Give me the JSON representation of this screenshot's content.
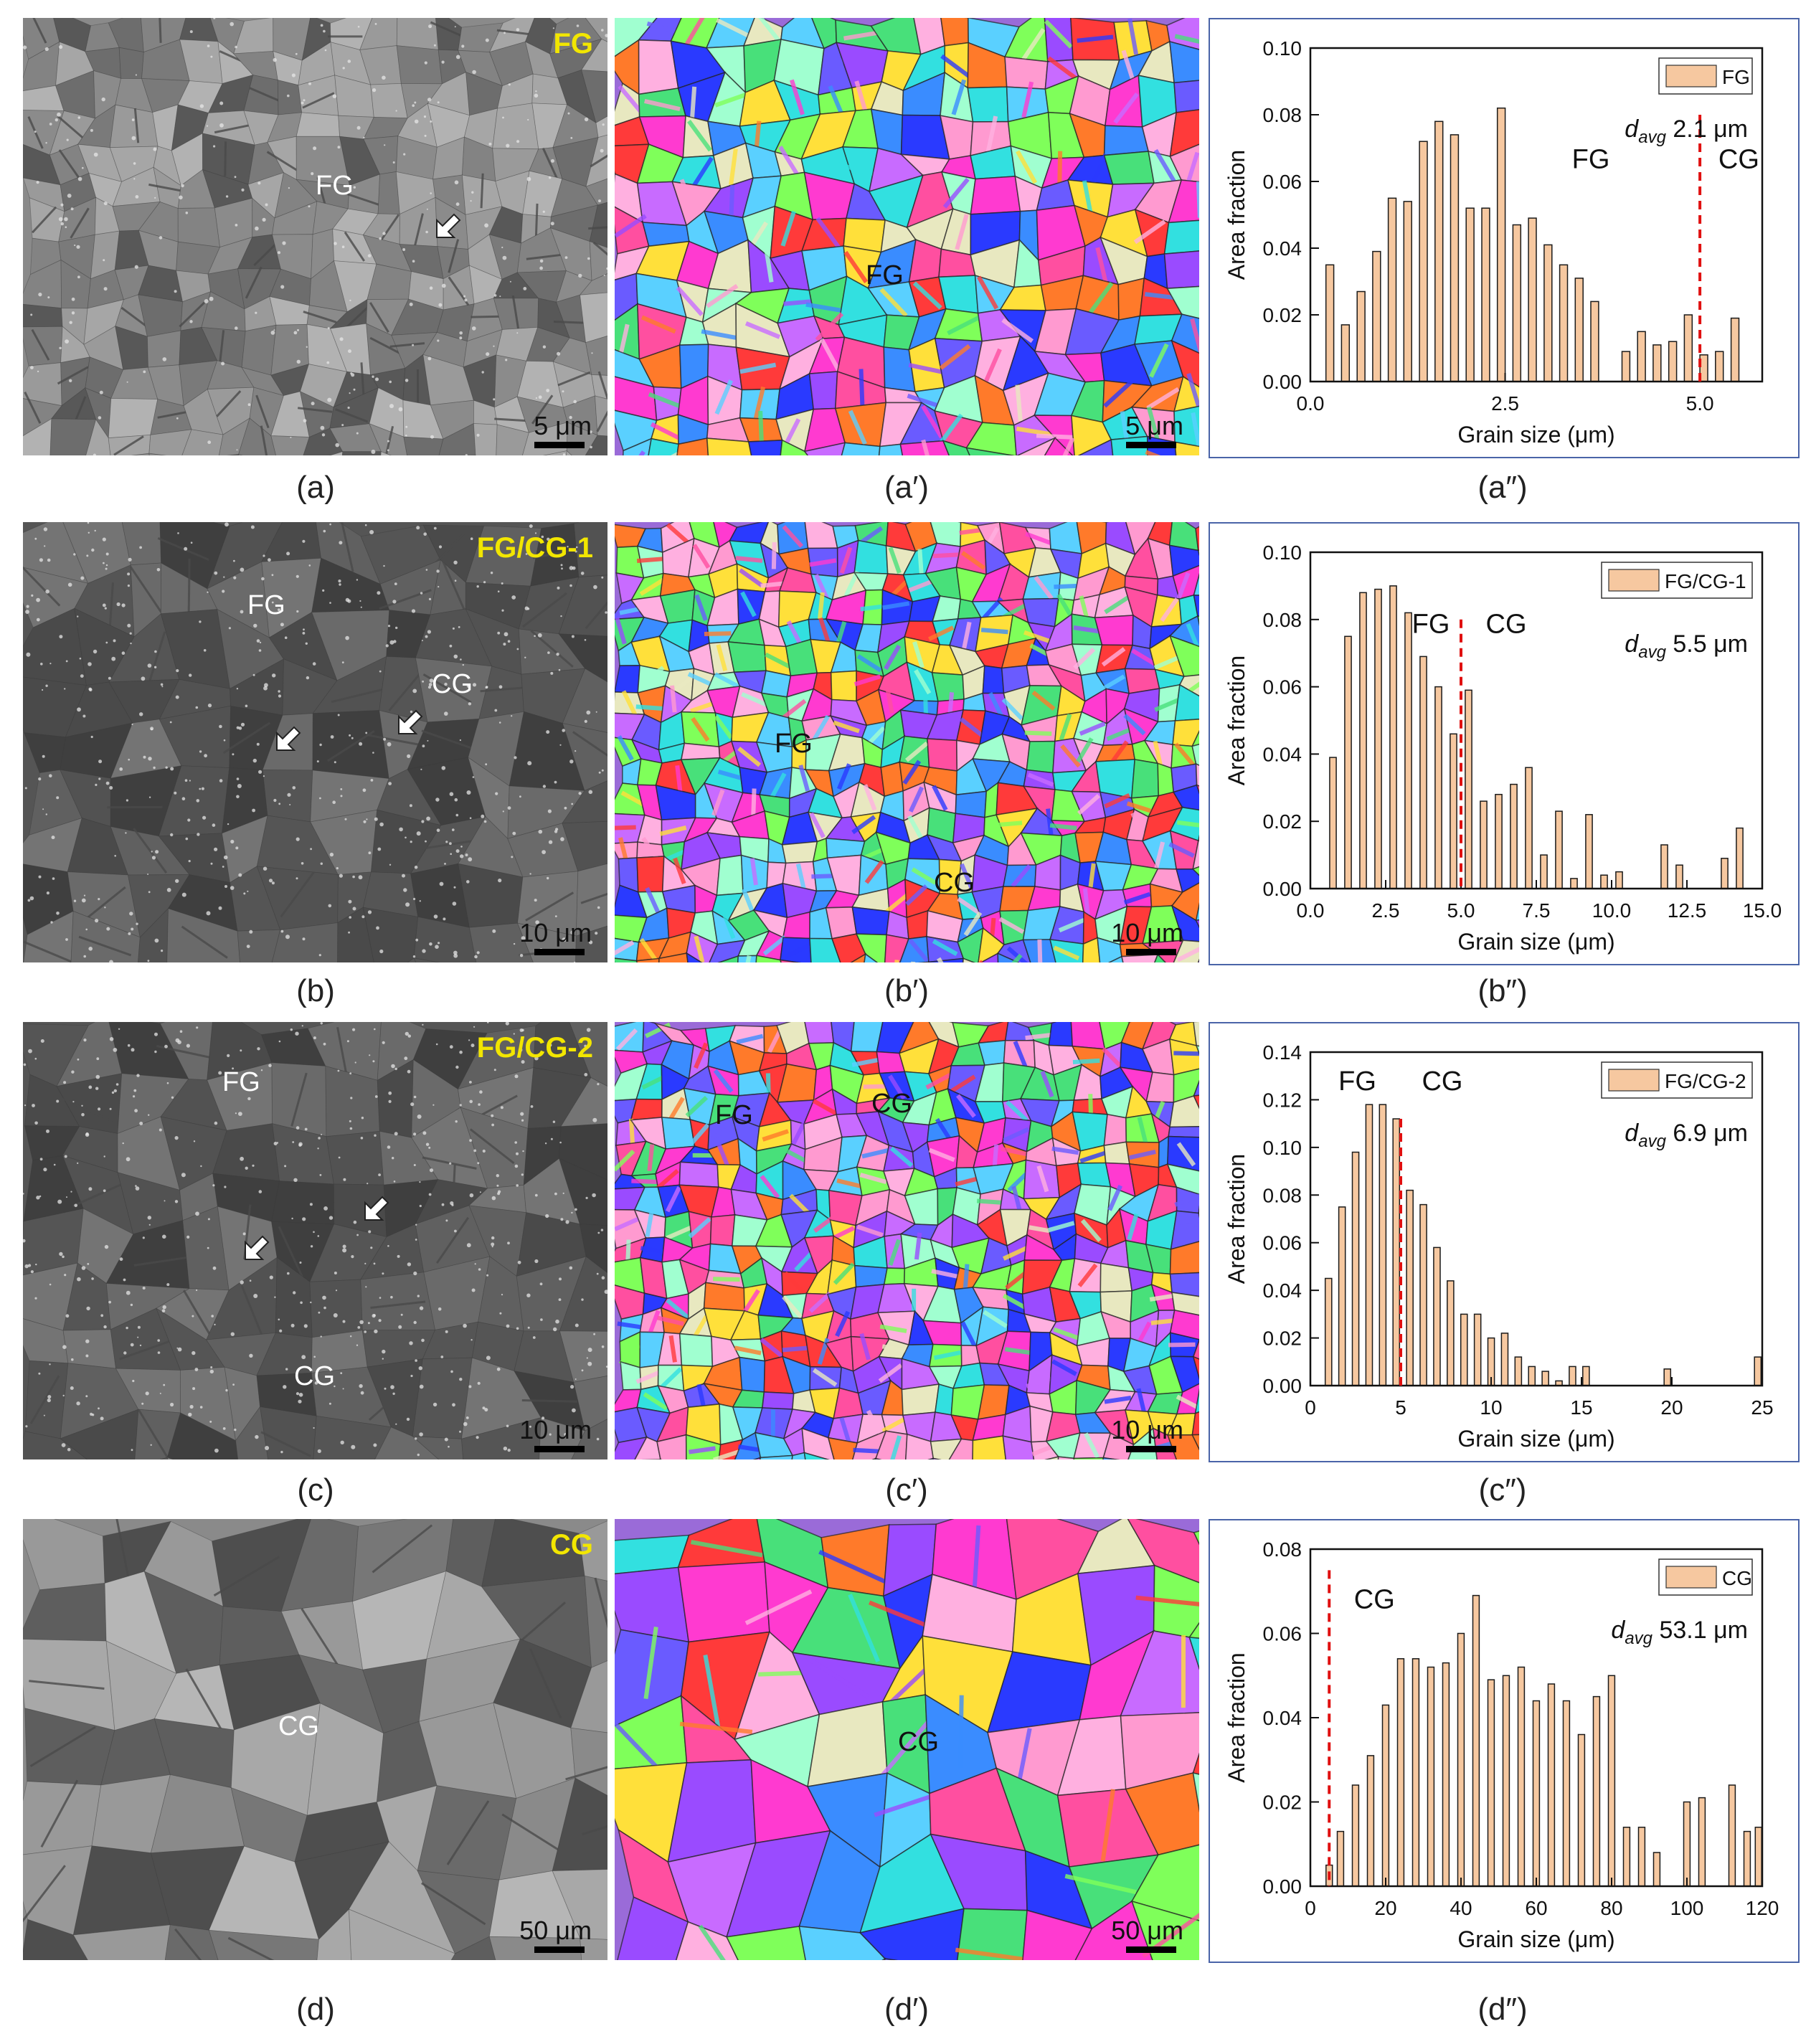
{
  "rows": [
    {
      "sem_caption": "(a)",
      "ebsd_caption": "(a′)",
      "chart_caption": "(a″)",
      "sem_tag": "FG",
      "sem_labels": [
        {
          "text": "FG"
        }
      ],
      "sem_scale": "5 μm",
      "ebsd_labels": [
        {
          "text": "FG"
        }
      ],
      "ebsd_scale": "5 μm",
      "sem_tone": "fine",
      "ebsd_tone": "fine"
    },
    {
      "sem_caption": "(b)",
      "ebsd_caption": "(b′)",
      "chart_caption": "(b″)",
      "sem_tag": "FG/CG-1",
      "sem_labels": [
        {
          "text": "FG"
        },
        {
          "text": "CG"
        }
      ],
      "sem_scale": "10 μm",
      "ebsd_labels": [
        {
          "text": "FG"
        },
        {
          "text": "CG"
        }
      ],
      "ebsd_scale": "10 μm",
      "sem_tone": "dark",
      "ebsd_tone": "mixed"
    },
    {
      "sem_caption": "(c)",
      "ebsd_caption": "(c′)",
      "chart_caption": "(c″)",
      "sem_tag": "FG/CG-2",
      "sem_labels": [
        {
          "text": "FG"
        },
        {
          "text": "CG"
        }
      ],
      "sem_scale": "10 μm",
      "ebsd_labels": [
        {
          "text": "FG"
        },
        {
          "text": "CG"
        }
      ],
      "ebsd_scale": "10 μm",
      "sem_tone": "dark",
      "ebsd_tone": "mixed"
    },
    {
      "sem_caption": "(d)",
      "ebsd_caption": "(d′)",
      "chart_caption": "(d″)",
      "sem_tag": "CG",
      "sem_labels": [
        {
          "text": "CG"
        }
      ],
      "sem_scale": "50 μm",
      "ebsd_labels": [
        {
          "text": "CG"
        }
      ],
      "ebsd_scale": "50 μm",
      "sem_tone": "coarse",
      "ebsd_tone": "coarse"
    }
  ],
  "chart_data": [
    {
      "type": "bar",
      "legend": "FG",
      "legend_position": "top-right",
      "davg_label": "d",
      "davg_sub": "avg",
      "davg_value": "2.1 μm",
      "xlabel": "Grain size (μm)",
      "ylabel": "Area fraction",
      "xlim": [
        0,
        5.8
      ],
      "ylim": [
        0,
        0.1
      ],
      "xticks": [
        0.0,
        2.5,
        5.0
      ],
      "xtick_labels": [
        "0.0",
        "2.5",
        "5.0"
      ],
      "yticks": [
        0.0,
        0.02,
        0.04,
        0.06,
        0.08,
        0.1
      ],
      "ytick_labels": [
        "0.00",
        "0.02",
        "0.04",
        "0.06",
        "0.08",
        "0.10"
      ],
      "divider_x": 5.0,
      "region_labels": [
        {
          "text": "FG",
          "x": 3.6,
          "y": 0.064
        },
        {
          "text": "CG",
          "x": 5.5,
          "y": 0.064
        }
      ],
      "bar_width": 0.1,
      "x": [
        0.25,
        0.45,
        0.65,
        0.85,
        1.05,
        1.25,
        1.45,
        1.65,
        1.85,
        2.05,
        2.25,
        2.45,
        2.65,
        2.85,
        3.05,
        3.25,
        3.45,
        3.65,
        3.85,
        4.05,
        4.25,
        4.45,
        4.65,
        4.85,
        5.05,
        5.25,
        5.45
      ],
      "values": [
        0.035,
        0.017,
        0.027,
        0.039,
        0.055,
        0.054,
        0.072,
        0.078,
        0.074,
        0.052,
        0.052,
        0.082,
        0.047,
        0.049,
        0.041,
        0.035,
        0.031,
        0.024,
        0.0,
        0.009,
        0.015,
        0.011,
        0.012,
        0.02,
        0.008,
        0.009,
        0.019
      ]
    },
    {
      "type": "bar",
      "legend": "FG/CG-1",
      "legend_position": "top-right",
      "davg_label": "d",
      "davg_sub": "avg",
      "davg_value": "5.5 μm",
      "xlabel": "Grain size (μm)",
      "ylabel": "Area fraction",
      "xlim": [
        0,
        15
      ],
      "ylim": [
        0,
        0.1
      ],
      "xticks": [
        0.0,
        2.5,
        5.0,
        7.5,
        10.0,
        12.5,
        15.0
      ],
      "xtick_labels": [
        "0.0",
        "2.5",
        "5.0",
        "7.5",
        "10.0",
        "12.5",
        "15.0"
      ],
      "yticks": [
        0.0,
        0.02,
        0.04,
        0.06,
        0.08,
        0.1
      ],
      "ytick_labels": [
        "0.00",
        "0.02",
        "0.04",
        "0.06",
        "0.08",
        "0.10"
      ],
      "divider_x": 5.0,
      "region_labels": [
        {
          "text": "FG",
          "x": 4.0,
          "y": 0.076
        },
        {
          "text": "CG",
          "x": 6.5,
          "y": 0.076
        }
      ],
      "bar_width": 0.22,
      "x": [
        0.75,
        1.25,
        1.75,
        2.25,
        2.75,
        3.25,
        3.75,
        4.25,
        4.75,
        5.25,
        5.75,
        6.25,
        6.75,
        7.25,
        7.75,
        8.25,
        8.75,
        9.25,
        9.75,
        10.25,
        11.75,
        12.25,
        13.75,
        14.25
      ],
      "values": [
        0.039,
        0.075,
        0.088,
        0.089,
        0.09,
        0.082,
        0.069,
        0.06,
        0.046,
        0.059,
        0.026,
        0.028,
        0.031,
        0.036,
        0.01,
        0.023,
        0.003,
        0.022,
        0.004,
        0.005,
        0.013,
        0.007,
        0.009,
        0.018
      ]
    },
    {
      "type": "bar",
      "legend": "FG/CG-2",
      "legend_position": "top-right",
      "davg_label": "d",
      "davg_sub": "avg",
      "davg_value": "6.9 μm",
      "xlabel": "Grain size (μm)",
      "ylabel": "Area fraction",
      "xlim": [
        0,
        25
      ],
      "ylim": [
        0,
        0.14
      ],
      "xticks": [
        0,
        5,
        10,
        15,
        20,
        25
      ],
      "xtick_labels": [
        "0",
        "5",
        "10",
        "15",
        "20",
        "25"
      ],
      "yticks": [
        0.0,
        0.02,
        0.04,
        0.06,
        0.08,
        0.1,
        0.12,
        0.14
      ],
      "ytick_labels": [
        "0.00",
        "0.02",
        "0.04",
        "0.06",
        "0.08",
        "0.10",
        "0.12",
        "0.14"
      ],
      "divider_x": 5.0,
      "region_labels": [
        {
          "text": "FG",
          "x": 2.6,
          "y": 0.124
        },
        {
          "text": "CG",
          "x": 7.3,
          "y": 0.124
        }
      ],
      "bar_width": 0.36,
      "x": [
        1.0,
        1.75,
        2.5,
        3.25,
        4.0,
        4.75,
        5.5,
        6.25,
        7.0,
        7.75,
        8.5,
        9.25,
        10.0,
        10.75,
        11.5,
        12.25,
        13.0,
        13.75,
        14.5,
        15.25,
        16.75,
        19.75,
        24.75
      ],
      "values": [
        0.045,
        0.075,
        0.098,
        0.118,
        0.118,
        0.112,
        0.082,
        0.076,
        0.058,
        0.044,
        0.03,
        0.03,
        0.02,
        0.022,
        0.012,
        0.008,
        0.006,
        0.002,
        0.008,
        0.008,
        0.0,
        0.007,
        0.012
      ]
    },
    {
      "type": "bar",
      "legend": "CG",
      "legend_position": "top-right",
      "davg_label": "d",
      "davg_sub": "avg",
      "davg_value": "53.1 μm",
      "xlabel": "Grain size (μm)",
      "ylabel": "Area fraction",
      "xlim": [
        0,
        120
      ],
      "ylim": [
        0,
        0.08
      ],
      "xticks": [
        0,
        20,
        40,
        60,
        80,
        100,
        120
      ],
      "xtick_labels": [
        "0",
        "20",
        "40",
        "60",
        "80",
        "100",
        "120"
      ],
      "yticks": [
        0.0,
        0.02,
        0.04,
        0.06,
        0.08
      ],
      "ytick_labels": [
        "0.00",
        "0.02",
        "0.04",
        "0.06",
        "0.08"
      ],
      "divider_x": 5.0,
      "region_labels": [
        {
          "text": "CG",
          "x": 17,
          "y": 0.066
        }
      ],
      "bar_width": 1.7,
      "x": [
        5,
        8,
        12,
        16,
        20,
        24,
        28,
        32,
        36,
        40,
        44,
        48,
        52,
        56,
        60,
        64,
        68,
        72,
        76,
        80,
        84,
        88,
        92,
        96,
        100,
        104,
        108,
        112,
        116,
        119
      ],
      "values": [
        0.005,
        0.013,
        0.024,
        0.031,
        0.043,
        0.054,
        0.054,
        0.052,
        0.053,
        0.06,
        0.069,
        0.049,
        0.05,
        0.052,
        0.044,
        0.048,
        0.044,
        0.036,
        0.045,
        0.05,
        0.014,
        0.014,
        0.008,
        0.0,
        0.02,
        0.021,
        0.0,
        0.024,
        0.013,
        0.014
      ]
    }
  ],
  "colors": {
    "bar_fill": "#f6c8a0",
    "bar_edge": "#1a1a1a",
    "divider": "#e01010",
    "tag": "#f2e600",
    "frame": "#4a64a8"
  }
}
